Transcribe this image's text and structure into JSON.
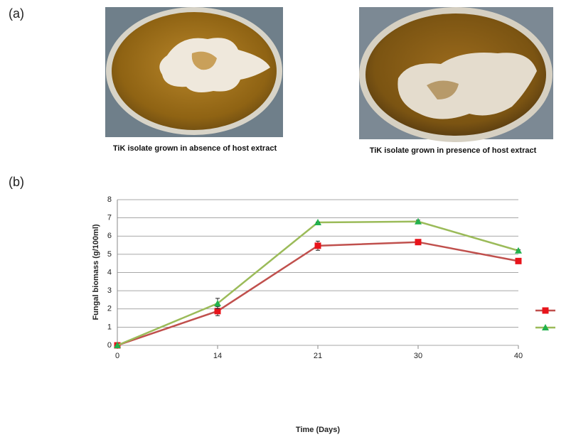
{
  "panels": [
    {
      "label": "(a)",
      "captions": [
        "TiK isolate grown in absence of host extract",
        "TiK isolate grown in presence of host extract"
      ]
    },
    {
      "label": "(b)"
    }
  ],
  "chart_data": {
    "type": "line",
    "x_label": "Time (Days)",
    "y_label": "Fungal biomass (g/100ml)",
    "categories": [
      "0",
      "14",
      "21",
      "30",
      "40"
    ],
    "series": [
      {
        "color": "#c0504d",
        "marker_color": "#e8141b",
        "marker": "square",
        "values": [
          0,
          1.88,
          5.47,
          5.67,
          4.63
        ],
        "errors": [
          0,
          0.25,
          0.25,
          0.1,
          0.1
        ]
      },
      {
        "color": "#9bbb59",
        "marker_color": "#22b14c",
        "marker": "triangle",
        "values": [
          0,
          2.3,
          6.75,
          6.8,
          5.2
        ],
        "errors": [
          0,
          0.28,
          0.02,
          0.08,
          0.05
        ]
      }
    ],
    "ylim": [
      0,
      8
    ],
    "yticks": [
      0,
      1,
      2,
      3,
      4,
      5,
      6,
      7,
      8
    ],
    "grid": true,
    "legend": "right"
  }
}
